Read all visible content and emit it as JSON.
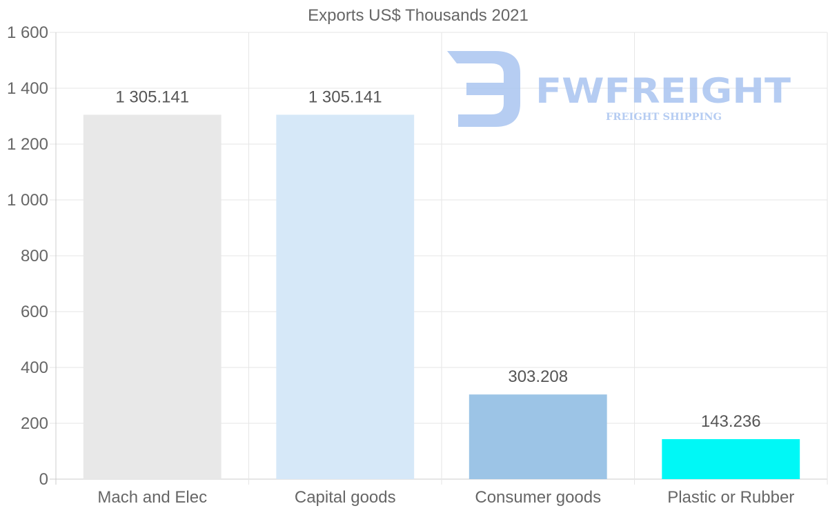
{
  "chart_data": {
    "type": "bar",
    "title": "Exports US$ Thousands 2021",
    "categories": [
      "Mach and Elec",
      "Capital goods",
      "Consumer goods",
      "Plastic or Rubber"
    ],
    "values": [
      1305.141,
      1305.141,
      303.208,
      143.236
    ],
    "value_labels": [
      "1 305.141",
      "1 305.141",
      "303.208",
      "143.236"
    ],
    "colors": [
      "#e8e8e8",
      "#d6e8f8",
      "#9cc4e6",
      "#00f8f6"
    ],
    "ylim": [
      0,
      1600
    ],
    "yticks": [
      0,
      200,
      400,
      600,
      800,
      1000,
      1200,
      1400,
      1600
    ],
    "ytick_labels": [
      "0",
      "200",
      "400",
      "600",
      "800",
      "1 000",
      "1 200",
      "1 400",
      "1 600"
    ],
    "grid": true,
    "xlabel": "",
    "ylabel": ""
  },
  "watermark": {
    "name": "FWFREIGHT",
    "tagline": "FREIGHT SHIPPING"
  }
}
